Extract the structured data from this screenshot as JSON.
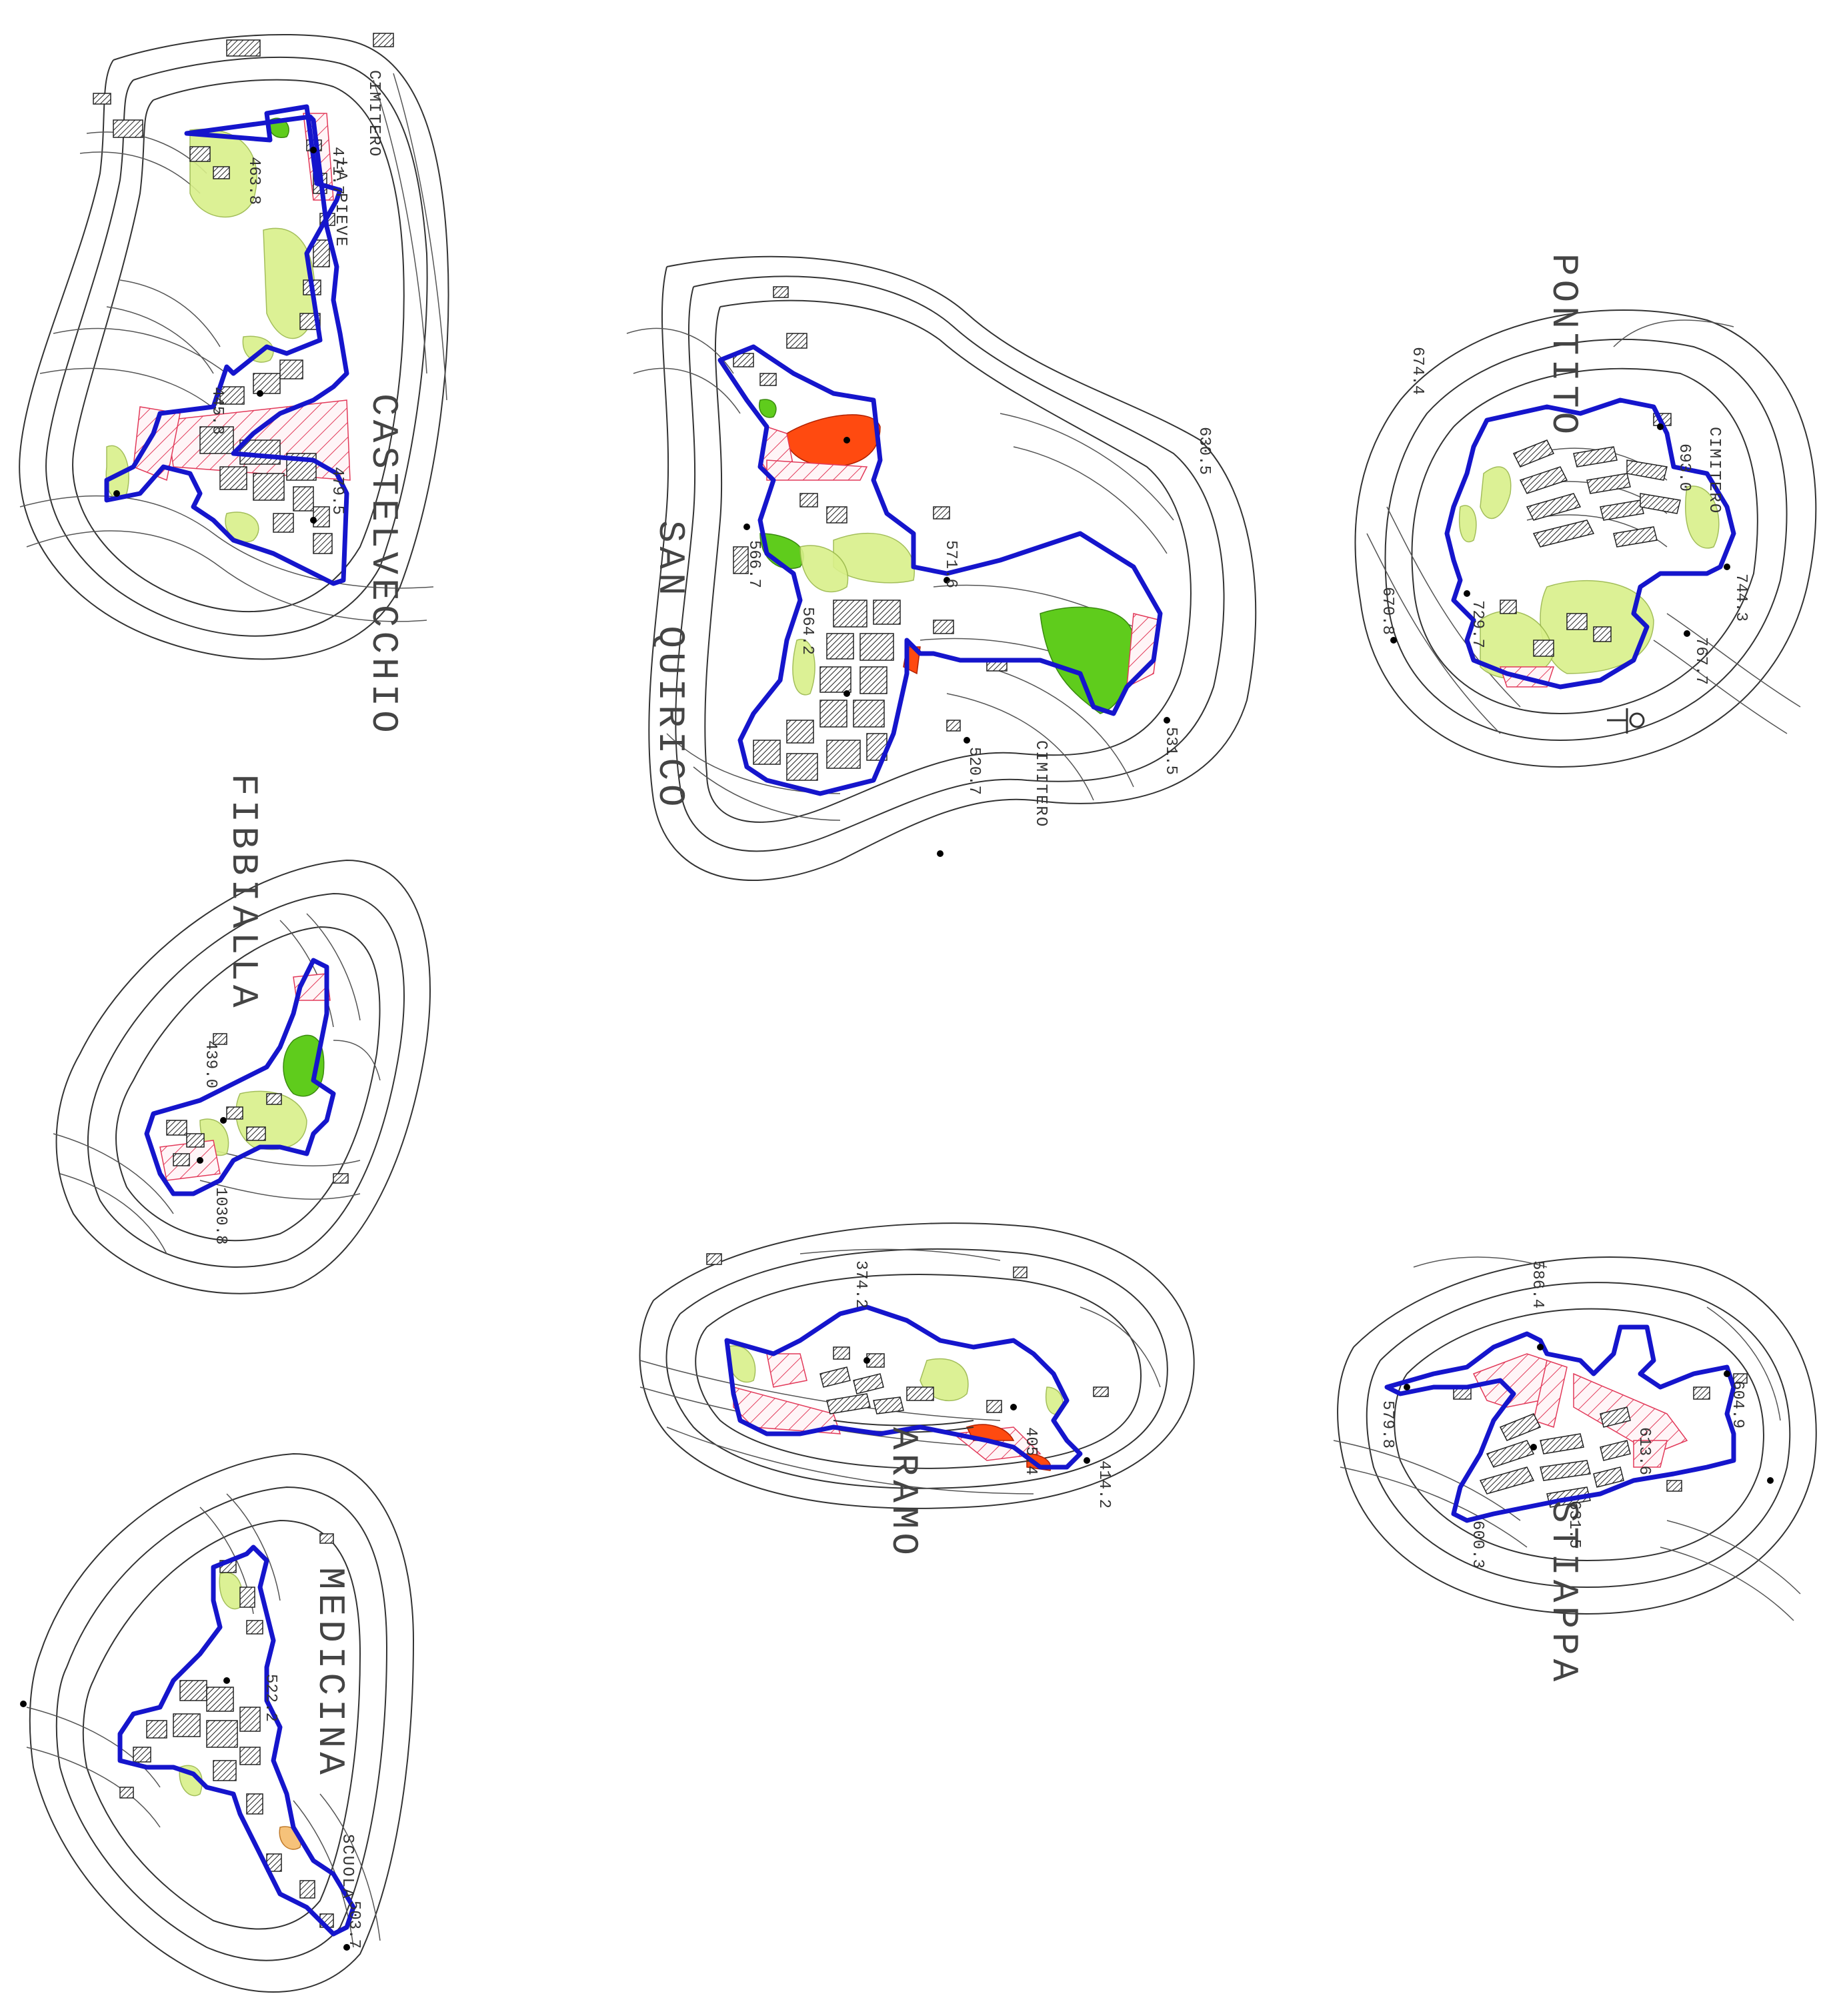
{
  "settlements": [
    {
      "id": "castelvecchio",
      "name": "CASTELVECCHIO",
      "labels": [
        "CIMITERO",
        "LA PIEVE"
      ],
      "elevations": [
        "463.8",
        "471.7",
        "445.8",
        "479.5"
      ]
    },
    {
      "id": "san-quirico",
      "name": "SAN QUIRICO",
      "labels": [
        "CIMITERO"
      ],
      "elevations": [
        "630.5",
        "571.6",
        "566.7",
        "531.5",
        "520.7",
        "564.2"
      ]
    },
    {
      "id": "pontito",
      "name": "PONTITO",
      "labels": [
        "CIMITERO"
      ],
      "elevations": [
        "693.0",
        "744.3",
        "670.8",
        "674.4",
        "767.7",
        "729.7"
      ]
    },
    {
      "id": "fibbialla",
      "name": "FIBBIALLA",
      "labels": [],
      "elevations": [
        "439.0",
        "1030.8"
      ]
    },
    {
      "id": "aramo",
      "name": "ARAMO",
      "labels": [],
      "elevations": [
        "374.2",
        "405.4",
        "414.2"
      ]
    },
    {
      "id": "stiappa",
      "name": "STIAPPA",
      "labels": [],
      "elevations": [
        "586.4",
        "579.8",
        "604.9",
        "600.3",
        "613.6",
        "631.5"
      ]
    },
    {
      "id": "medicina",
      "name": "MEDICINA",
      "labels": [
        "SCUOLA"
      ],
      "elevations": [
        "522.2",
        "503.7"
      ]
    }
  ],
  "legend_colors": {
    "boundary": "#1515cc",
    "zone_light": "#d9f08a",
    "zone_green": "#5fcc1c",
    "zone_red": "#ff4a10",
    "zone_hatch": "#e23a5a",
    "zone_orange": "#f6c27a"
  }
}
